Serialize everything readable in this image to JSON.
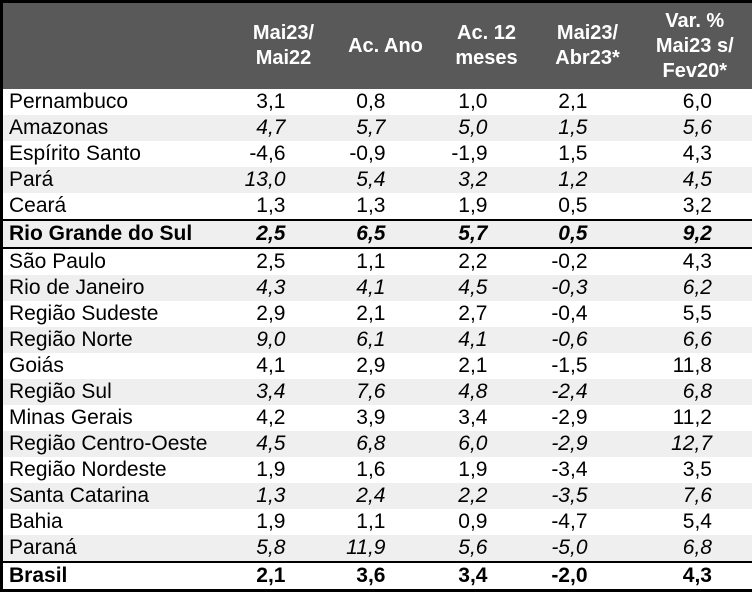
{
  "colors": {
    "header_bg": "#595959",
    "header_text": "#ffffff",
    "stripe_bg": "#efefef",
    "border": "#000000",
    "body_text": "#000000"
  },
  "chart_data": {
    "type": "table",
    "corner_label": "",
    "columns": [
      {
        "lines": [
          "Mai23/",
          "Mai22"
        ]
      },
      {
        "lines": [
          "Ac. Ano"
        ]
      },
      {
        "lines": [
          "Ac. 12",
          "meses"
        ]
      },
      {
        "lines": [
          "Mai23/",
          "Abr23*"
        ]
      },
      {
        "lines": [
          "Var. %",
          "Mai23 s/",
          "Fev20*"
        ]
      }
    ],
    "rows": [
      {
        "label": "Pernambuco",
        "values": [
          "3,1",
          "0,8",
          "1,0",
          "2,1",
          "6,0"
        ],
        "style": "plain"
      },
      {
        "label": "Amazonas",
        "values": [
          "4,7",
          "5,7",
          "5,0",
          "1,5",
          "5,6"
        ],
        "style": "stripe"
      },
      {
        "label": "Espírito Santo",
        "values": [
          "-4,6",
          "-0,9",
          "-1,9",
          "1,5",
          "4,3"
        ],
        "style": "plain"
      },
      {
        "label": "Pará",
        "values": [
          "13,0",
          "5,4",
          "3,2",
          "1,2",
          "4,5"
        ],
        "style": "stripe"
      },
      {
        "label": "Ceará",
        "values": [
          "1,3",
          "1,3",
          "1,9",
          "0,5",
          "3,2"
        ],
        "style": "plain"
      },
      {
        "label": "Rio Grande do Sul",
        "values": [
          "2,5",
          "6,5",
          "5,7",
          "0,5",
          "9,2"
        ],
        "style": "highlight"
      },
      {
        "label": "São Paulo",
        "values": [
          "2,5",
          "1,1",
          "2,2",
          "-0,2",
          "4,3"
        ],
        "style": "plain"
      },
      {
        "label": "Rio de Janeiro",
        "values": [
          "4,3",
          "4,1",
          "4,5",
          "-0,3",
          "6,2"
        ],
        "style": "stripe"
      },
      {
        "label": "Região Sudeste",
        "values": [
          "2,9",
          "2,1",
          "2,7",
          "-0,4",
          "5,5"
        ],
        "style": "plain"
      },
      {
        "label": "Região Norte",
        "values": [
          "9,0",
          "6,1",
          "4,1",
          "-0,6",
          "6,6"
        ],
        "style": "stripe"
      },
      {
        "label": "Goiás",
        "values": [
          "4,1",
          "2,9",
          "2,1",
          "-1,5",
          "11,8"
        ],
        "style": "plain"
      },
      {
        "label": "Região Sul",
        "values": [
          "3,4",
          "7,6",
          "4,8",
          "-2,4",
          "6,8"
        ],
        "style": "stripe"
      },
      {
        "label": "Minas Gerais",
        "values": [
          "4,2",
          "3,9",
          "3,4",
          "-2,9",
          "11,2"
        ],
        "style": "plain"
      },
      {
        "label": "Região Centro-Oeste",
        "values": [
          "4,5",
          "6,8",
          "6,0",
          "-2,9",
          "12,7"
        ],
        "style": "stripe"
      },
      {
        "label": "Região Nordeste",
        "values": [
          "1,9",
          "1,6",
          "1,9",
          "-3,4",
          "3,5"
        ],
        "style": "plain"
      },
      {
        "label": "Santa Catarina",
        "values": [
          "1,3",
          "2,4",
          "2,2",
          "-3,5",
          "7,6"
        ],
        "style": "stripe"
      },
      {
        "label": "Bahia",
        "values": [
          "1,9",
          "1,1",
          "0,9",
          "-4,7",
          "5,4"
        ],
        "style": "plain"
      },
      {
        "label": "Paraná",
        "values": [
          "5,8",
          "11,9",
          "5,6",
          "-5,0",
          "6,8"
        ],
        "style": "stripe"
      },
      {
        "label": "Brasil",
        "values": [
          "2,1",
          "3,6",
          "3,4",
          "-2,0",
          "4,3"
        ],
        "style": "total"
      }
    ]
  }
}
